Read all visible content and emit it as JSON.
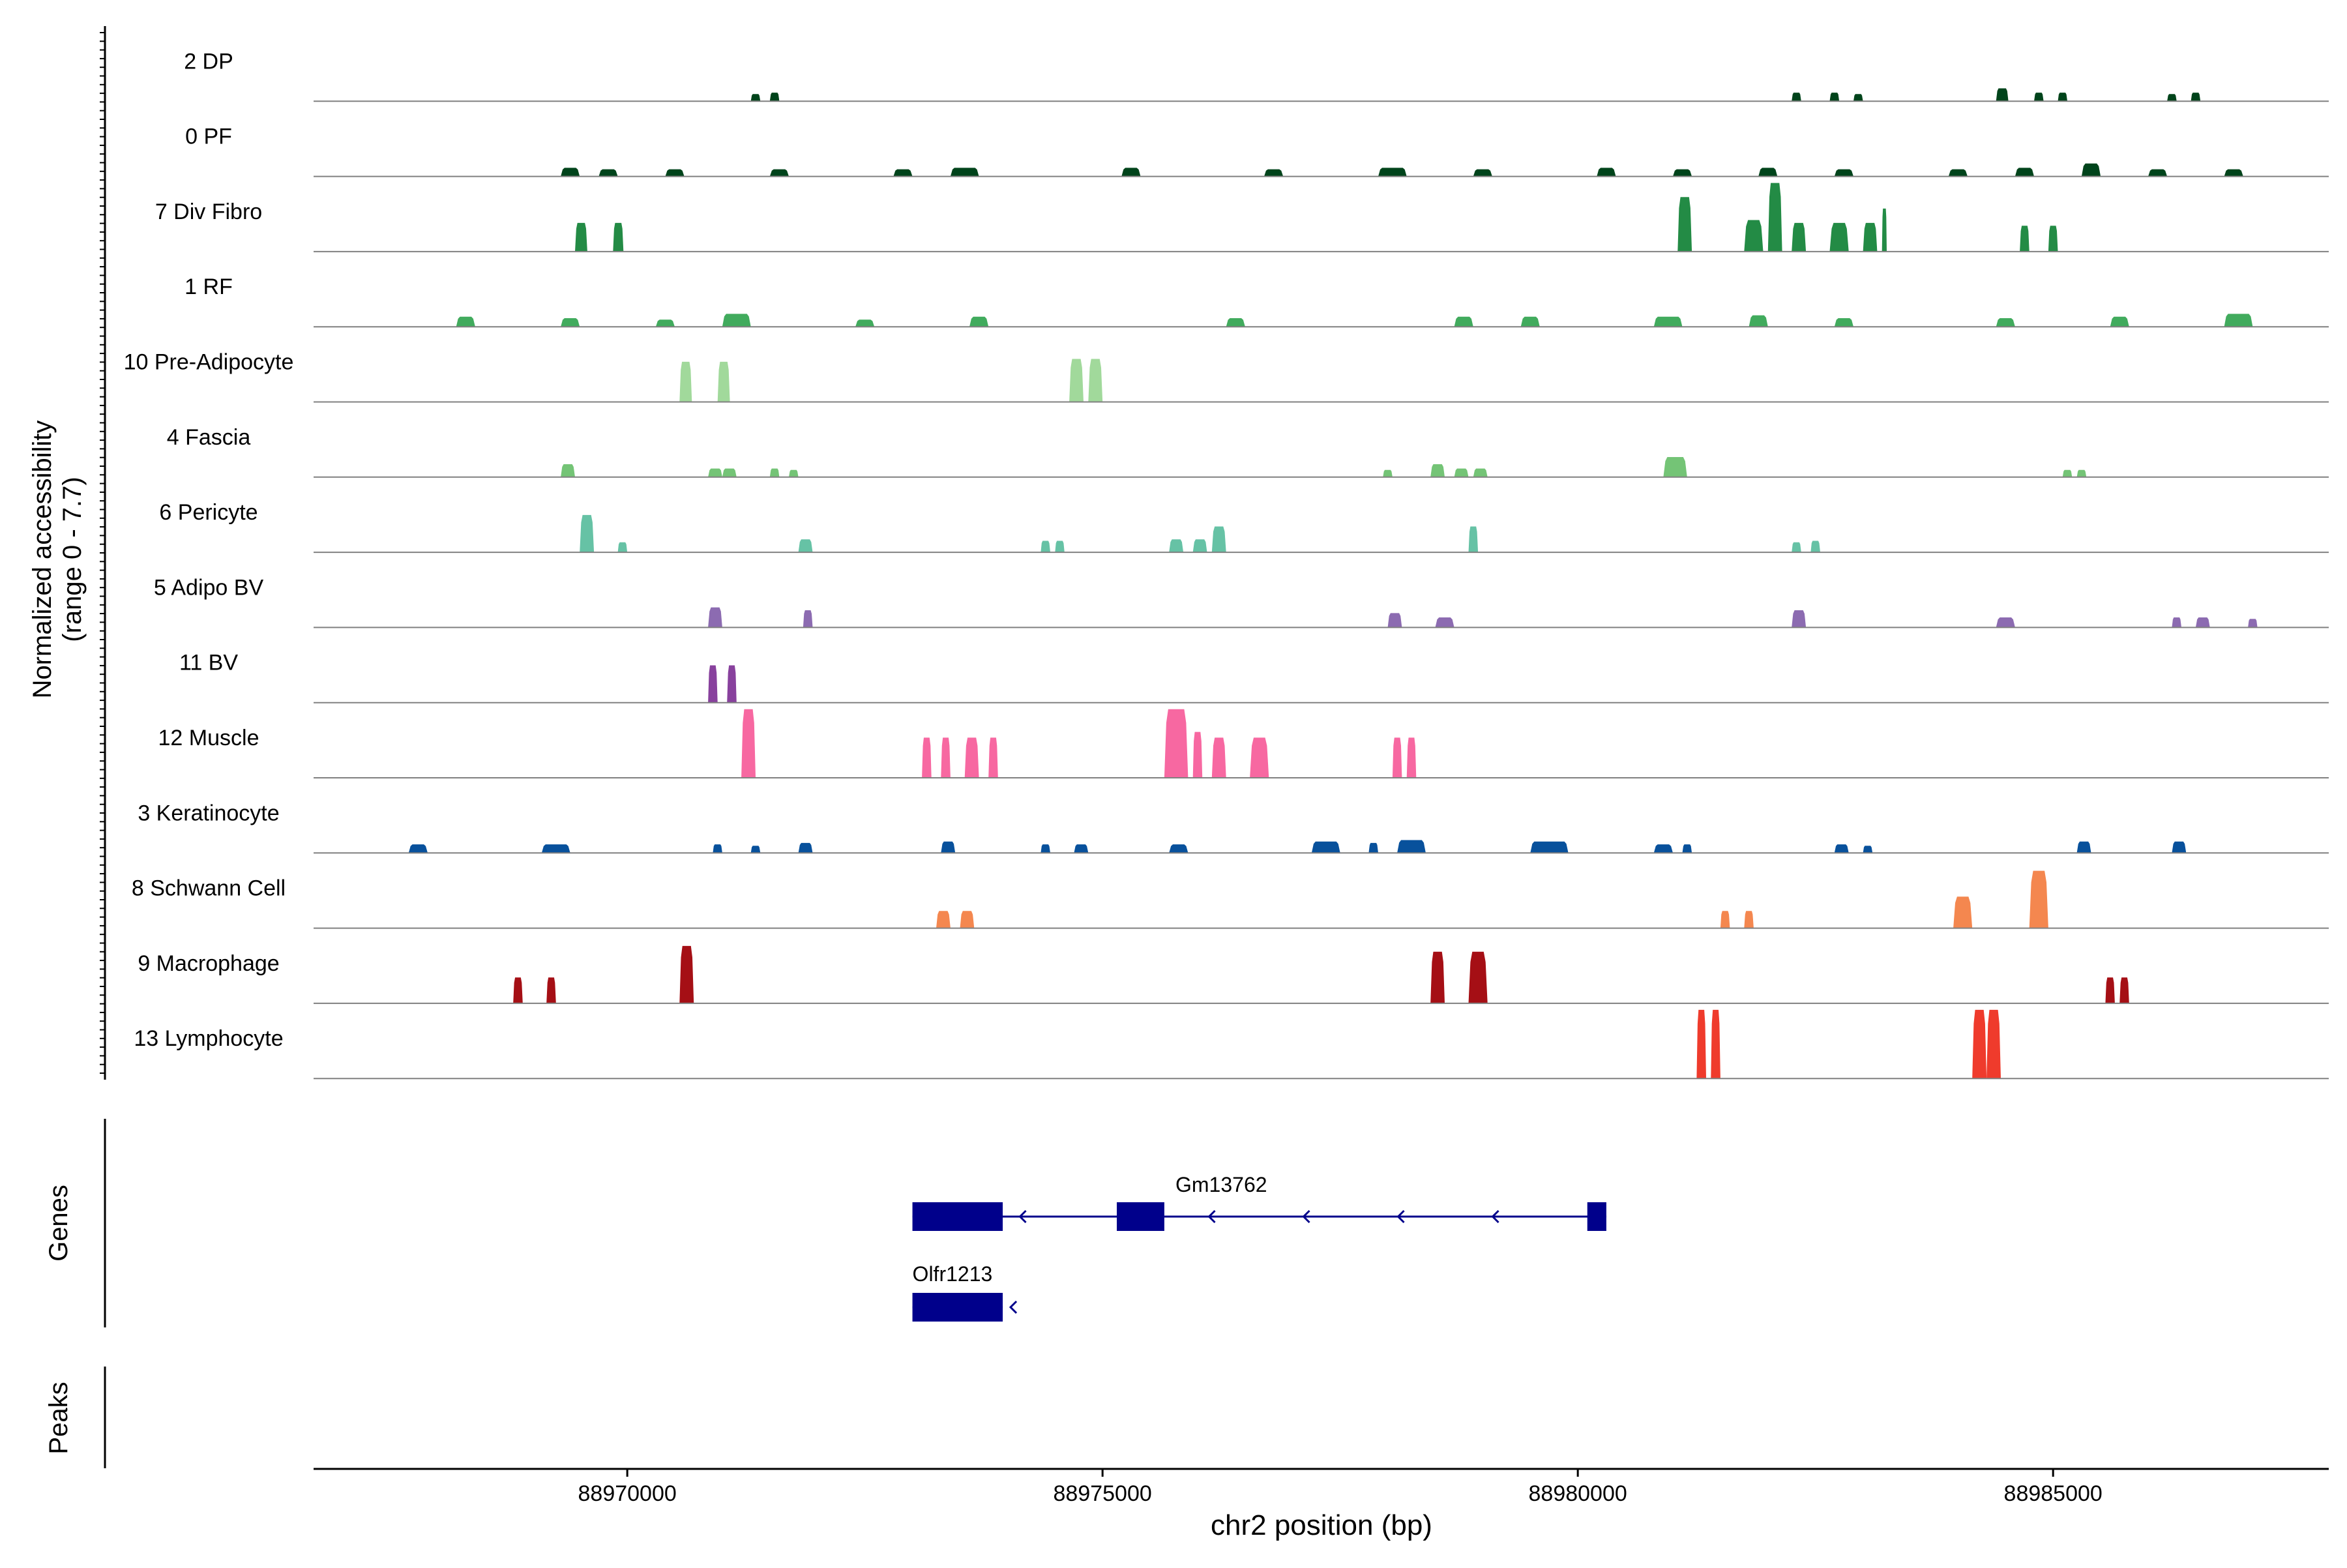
{
  "chart_data": {
    "type": "area",
    "title": "",
    "xlabel": "chr2 position (bp)",
    "ylabel_line1": "Normalized accessibility",
    "ylabel_line2": "(range 0 - 7.7)",
    "genes_label": "Genes",
    "peaks_label": "Peaks",
    "xlim": [
      88966700,
      88987900
    ],
    "ylim": [
      0,
      7.7
    ],
    "x_ticks": [
      88970000,
      88975000,
      88980000,
      88985000
    ],
    "x_tick_labels": [
      "88970000",
      "88975000",
      "88980000",
      "88985000"
    ],
    "tracks": [
      {
        "name": "2 DP",
        "color": "#00441b",
        "peaks": [
          [
            88971300,
            88971400,
            0.25
          ],
          [
            88971500,
            88971600,
            0.3
          ],
          [
            88982250,
            88982350,
            0.3
          ],
          [
            88982650,
            88982750,
            0.3
          ],
          [
            88982900,
            88983000,
            0.25
          ],
          [
            88984400,
            88984530,
            0.45
          ],
          [
            88984800,
            88984900,
            0.3
          ],
          [
            88985050,
            88985150,
            0.3
          ],
          [
            88986200,
            88986300,
            0.25
          ],
          [
            88986450,
            88986550,
            0.3
          ]
        ]
      },
      {
        "name": "0 PF",
        "color": "#00441b",
        "peaks": [
          [
            88969300,
            88969500,
            0.3
          ],
          [
            88969700,
            88969900,
            0.25
          ],
          [
            88970400,
            88970600,
            0.25
          ],
          [
            88971500,
            88971700,
            0.25
          ],
          [
            88972800,
            88973000,
            0.25
          ],
          [
            88973400,
            88973700,
            0.3
          ],
          [
            88975200,
            88975400,
            0.3
          ],
          [
            88976700,
            88976900,
            0.25
          ],
          [
            88977900,
            88978200,
            0.3
          ],
          [
            88978900,
            88979100,
            0.25
          ],
          [
            88980200,
            88980400,
            0.3
          ],
          [
            88981000,
            88981200,
            0.25
          ],
          [
            88981900,
            88982100,
            0.3
          ],
          [
            88982700,
            88982900,
            0.25
          ],
          [
            88983900,
            88984100,
            0.25
          ],
          [
            88984600,
            88984800,
            0.3
          ],
          [
            88985300,
            88985500,
            0.45
          ],
          [
            88986000,
            88986200,
            0.25
          ],
          [
            88986800,
            88987000,
            0.25
          ]
        ]
      },
      {
        "name": "7 Div Fibro",
        "color": "#238b45",
        "peaks": [
          [
            88969450,
            88969580,
            1.0
          ],
          [
            88969850,
            88969960,
            1.0
          ],
          [
            88981050,
            88981200,
            1.9
          ],
          [
            88981750,
            88981950,
            1.1
          ],
          [
            88982000,
            88982150,
            3.0
          ],
          [
            88982250,
            88982400,
            1.0
          ],
          [
            88982650,
            88982850,
            1.0
          ],
          [
            88983000,
            88983150,
            1.0
          ],
          [
            88983200,
            88983250,
            1.5
          ],
          [
            88984650,
            88984750,
            0.9
          ],
          [
            88984950,
            88985050,
            0.9
          ]
        ]
      },
      {
        "name": "1 RF",
        "color": "#41ab5d",
        "peaks": [
          [
            88968200,
            88968400,
            0.35
          ],
          [
            88969300,
            88969500,
            0.3
          ],
          [
            88970300,
            88970500,
            0.25
          ],
          [
            88971000,
            88971300,
            0.45
          ],
          [
            88972400,
            88972600,
            0.25
          ],
          [
            88973600,
            88973800,
            0.35
          ],
          [
            88976300,
            88976500,
            0.3
          ],
          [
            88978700,
            88978900,
            0.35
          ],
          [
            88979400,
            88979600,
            0.35
          ],
          [
            88980800,
            88981100,
            0.35
          ],
          [
            88981800,
            88982000,
            0.4
          ],
          [
            88982700,
            88982900,
            0.3
          ],
          [
            88984400,
            88984600,
            0.3
          ],
          [
            88985600,
            88985800,
            0.35
          ],
          [
            88986800,
            88987100,
            0.45
          ]
        ]
      },
      {
        "name": "10 Pre-Adipocyte",
        "color": "#a1d99b",
        "peaks": [
          [
            88970550,
            88970680,
            1.4
          ],
          [
            88970950,
            88971080,
            1.4
          ],
          [
            88974650,
            88974800,
            1.5
          ],
          [
            88974850,
            88975000,
            1.5
          ]
        ]
      },
      {
        "name": "4 Fascia",
        "color": "#74c476",
        "peaks": [
          [
            88969300,
            88969450,
            0.45
          ],
          [
            88970850,
            88971000,
            0.3
          ],
          [
            88971000,
            88971150,
            0.3
          ],
          [
            88971500,
            88971600,
            0.3
          ],
          [
            88971700,
            88971800,
            0.25
          ],
          [
            88977950,
            88978050,
            0.25
          ],
          [
            88978450,
            88978600,
            0.45
          ],
          [
            88978700,
            88978850,
            0.3
          ],
          [
            88978900,
            88979050,
            0.3
          ],
          [
            88980900,
            88981150,
            0.7
          ],
          [
            88985100,
            88985200,
            0.25
          ],
          [
            88985250,
            88985350,
            0.25
          ]
        ]
      },
      {
        "name": "6 Pericyte",
        "color": "#66c2a5",
        "peaks": [
          [
            88969500,
            88969650,
            1.3
          ],
          [
            88969900,
            88970000,
            0.35
          ],
          [
            88971800,
            88971950,
            0.45
          ],
          [
            88974350,
            88974450,
            0.4
          ],
          [
            88974500,
            88974600,
            0.4
          ],
          [
            88975700,
            88975850,
            0.45
          ],
          [
            88975950,
            88976100,
            0.45
          ],
          [
            88976150,
            88976300,
            0.9
          ],
          [
            88978850,
            88978950,
            0.9
          ],
          [
            88982250,
            88982350,
            0.35
          ],
          [
            88982450,
            88982550,
            0.4
          ]
        ]
      },
      {
        "name": "5 Adipo BV",
        "color": "#8c6bb1",
        "peaks": [
          [
            88970850,
            88971000,
            0.7
          ],
          [
            88971850,
            88971950,
            0.6
          ],
          [
            88978000,
            88978150,
            0.5
          ],
          [
            88978500,
            88978700,
            0.35
          ],
          [
            88982250,
            88982400,
            0.6
          ],
          [
            88984400,
            88984600,
            0.35
          ],
          [
            88986250,
            88986350,
            0.35
          ],
          [
            88986500,
            88986650,
            0.35
          ],
          [
            88987050,
            88987150,
            0.3
          ]
        ]
      },
      {
        "name": "11 BV",
        "color": "#88419d",
        "peaks": [
          [
            88970850,
            88970950,
            1.3
          ],
          [
            88971050,
            88971150,
            1.3
          ]
        ]
      },
      {
        "name": "12 Muscle",
        "color": "#f768a1",
        "peaks": [
          [
            88971200,
            88971350,
            3.0
          ],
          [
            88973100,
            88973200,
            1.4
          ],
          [
            88973300,
            88973400,
            1.4
          ],
          [
            88973550,
            88973700,
            1.4
          ],
          [
            88973800,
            88973900,
            1.4
          ],
          [
            88975650,
            88975900,
            5.0
          ],
          [
            88975950,
            88976050,
            1.6
          ],
          [
            88976150,
            88976300,
            1.4
          ],
          [
            88976550,
            88976750,
            1.4
          ],
          [
            88978050,
            88978150,
            1.4
          ],
          [
            88978200,
            88978300,
            1.4
          ]
        ]
      },
      {
        "name": "3 Keratinocyte",
        "color": "#08519c",
        "peaks": [
          [
            88967700,
            88967900,
            0.3
          ],
          [
            88969100,
            88969400,
            0.3
          ],
          [
            88970900,
            88971000,
            0.3
          ],
          [
            88971300,
            88971400,
            0.25
          ],
          [
            88971800,
            88971950,
            0.35
          ],
          [
            88973300,
            88973450,
            0.4
          ],
          [
            88974350,
            88974450,
            0.3
          ],
          [
            88974700,
            88974850,
            0.3
          ],
          [
            88975700,
            88975900,
            0.3
          ],
          [
            88977200,
            88977500,
            0.4
          ],
          [
            88977800,
            88977900,
            0.35
          ],
          [
            88978100,
            88978400,
            0.45
          ],
          [
            88979500,
            88979900,
            0.4
          ],
          [
            88980800,
            88981000,
            0.3
          ],
          [
            88981100,
            88981200,
            0.3
          ],
          [
            88982700,
            88982850,
            0.3
          ],
          [
            88983000,
            88983100,
            0.25
          ],
          [
            88985250,
            88985400,
            0.4
          ],
          [
            88986250,
            88986400,
            0.4
          ]
        ]
      },
      {
        "name": "8 Schwann Cell",
        "color": "#f4874f",
        "peaks": [
          [
            88973250,
            88973400,
            0.6
          ],
          [
            88973500,
            88973650,
            0.6
          ],
          [
            88981500,
            88981600,
            0.6
          ],
          [
            88981750,
            88981850,
            0.6
          ],
          [
            88983950,
            88984150,
            1.1
          ],
          [
            88984750,
            88984950,
            2.0
          ]
        ]
      },
      {
        "name": "9 Macrophage",
        "color": "#a50f15",
        "peaks": [
          [
            88968800,
            88968900,
            0.9
          ],
          [
            88969150,
            88969250,
            0.9
          ],
          [
            88970550,
            88970700,
            2.0
          ],
          [
            88978450,
            88978600,
            1.8
          ],
          [
            88978850,
            88979050,
            1.8
          ],
          [
            88985550,
            88985650,
            0.9
          ],
          [
            88985700,
            88985800,
            0.9
          ]
        ]
      },
      {
        "name": "13 Lymphocyte",
        "color": "#ef3b2c",
        "peaks": [
          [
            88981250,
            88981350,
            3.3
          ],
          [
            88981400,
            88981500,
            3.3
          ],
          [
            88984150,
            88984300,
            3.3
          ],
          [
            88984300,
            88984450,
            3.3
          ]
        ]
      }
    ],
    "genes": [
      {
        "name": "Gm13762",
        "strand": "-",
        "start": 88973000,
        "end": 88980300,
        "exons": [
          [
            88973000,
            88973950
          ],
          [
            88975150,
            88975650
          ],
          [
            88980100,
            88980300
          ]
        ]
      },
      {
        "name": "Olfr1213",
        "strand": "-",
        "start": 88973000,
        "end": 88973950,
        "exons": [
          [
            88973000,
            88973950
          ]
        ]
      }
    ],
    "gene_color": "#00008b"
  }
}
